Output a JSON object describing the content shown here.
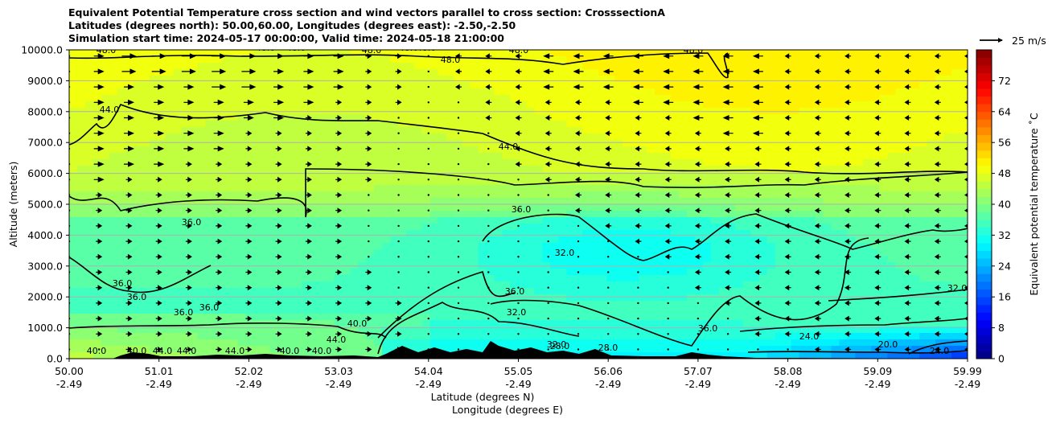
{
  "chart_data": {
    "type": "heatmap",
    "title_lines": [
      "Equivalent Potential Temperature cross section and wind vectors parallel to cross section: CrosssectionA",
      "Latitudes (degrees north): 50.00,60.00, Longitudes (degrees east): -2.50,-2.50",
      "Simulation start time: 2024-05-17 00:00:00, Valid time: 2024-05-18 21:00:00"
    ],
    "ylabel": "Altitude (meters)",
    "xlabel": "Latitude (degrees N)",
    "xlabel2": "Longitude (degrees E)",
    "ylim": [
      0,
      10000
    ],
    "y_ticks": [
      "0.0",
      "1000.0",
      "2000.0",
      "3000.0",
      "4000.0",
      "5000.0",
      "6000.0",
      "7000.0",
      "8000.0",
      "9000.0",
      "10000.0"
    ],
    "y_tick_values": [
      0,
      1000,
      2000,
      3000,
      4000,
      5000,
      6000,
      7000,
      8000,
      9000,
      10000
    ],
    "x_ticks": [
      {
        "lat": "50.00",
        "lon": "-2.49"
      },
      {
        "lat": "51.01",
        "lon": "-2.49"
      },
      {
        "lat": "52.02",
        "lon": "-2.49"
      },
      {
        "lat": "53.03",
        "lon": "-2.49"
      },
      {
        "lat": "54.04",
        "lon": "-2.49"
      },
      {
        "lat": "55.05",
        "lon": "-2.49"
      },
      {
        "lat": "56.06",
        "lon": "-2.49"
      },
      {
        "lat": "57.07",
        "lon": "-2.49"
      },
      {
        "lat": "58.08",
        "lon": "-2.49"
      },
      {
        "lat": "59.09",
        "lon": "-2.49"
      },
      {
        "lat": "59.99",
        "lon": "-2.49"
      }
    ],
    "grid": "horizontal",
    "colorbar": {
      "label": "Equivalent potential temperature $^\\circ$C",
      "label_display": "Equivalent potential temperature ˚C",
      "range": [
        0,
        80
      ],
      "ticks": [
        "0",
        "8",
        "16",
        "24",
        "32",
        "40",
        "48",
        "56",
        "64",
        "72"
      ],
      "tick_values": [
        0,
        8,
        16,
        24,
        32,
        40,
        48,
        56,
        64,
        72
      ],
      "colormap": "jet"
    },
    "quiver_key": {
      "label": "25 m/s",
      "value": 25
    },
    "contour_labels": [
      "48.0",
      "48.0",
      "48.0",
      "48.0",
      "48.0",
      "48.0",
      "48.0",
      "48.0",
      "48.0",
      "44.0",
      "44.0",
      "36.0",
      "36.0",
      "32.0",
      "36.0",
      "36.0",
      "36.0",
      "36.0",
      "32.0",
      "36.0",
      "32.0",
      "40.0",
      "44.0",
      "44.0",
      "44.0",
      "40.0",
      "40.0",
      "44.0",
      "40.0",
      "40.0",
      "28.0",
      "28.0",
      "24.0",
      "24.0",
      "20.0",
      "36.0",
      "32.0"
    ],
    "wind_rows": [
      {
        "alt": 9800,
        "u": [
          0,
          2,
          3,
          3,
          3,
          3,
          3,
          2,
          2,
          2,
          1,
          1,
          0,
          -1,
          -1,
          -1,
          -2,
          -2,
          -2,
          -2,
          -2,
          -2,
          -2,
          -2,
          -1,
          -1,
          -1,
          -1,
          -1,
          -1,
          -1
        ]
      },
      {
        "alt": 9300,
        "u": [
          0,
          2,
          3,
          3,
          3,
          3,
          3,
          2,
          2,
          2,
          1,
          1,
          0,
          -1,
          -1,
          -1,
          -2,
          -2,
          -2,
          -2,
          -2,
          -2,
          -2,
          -2,
          -1,
          -1,
          -1,
          -1,
          -1,
          -1,
          -1
        ]
      },
      {
        "alt": 8800,
        "u": [
          0,
          2,
          2,
          2,
          2,
          3,
          3,
          2,
          2,
          2,
          1,
          1,
          0,
          -1,
          -1,
          -1,
          -2,
          -2,
          -2,
          -2,
          -2,
          -2,
          -2,
          -2,
          -1,
          -1,
          -1,
          -1,
          -1,
          -1,
          -1
        ]
      },
      {
        "alt": 8300,
        "u": [
          0,
          2,
          2,
          2,
          2,
          2,
          2,
          2,
          2,
          1,
          1,
          1,
          0,
          0,
          -1,
          -1,
          -1,
          -1,
          -1,
          -2,
          -2,
          -2,
          -2,
          -2,
          -1,
          -1,
          -1,
          -1,
          -1,
          -1,
          -1
        ]
      },
      {
        "alt": 7800,
        "u": [
          0,
          2,
          2,
          2,
          2,
          2,
          2,
          2,
          1,
          1,
          1,
          0,
          0,
          0,
          -1,
          -1,
          -1,
          -1,
          -1,
          -1,
          -1,
          -2,
          -2,
          -2,
          -1,
          -1,
          -1,
          -1,
          -1,
          -1,
          -1
        ]
      },
      {
        "alt": 7300,
        "u": [
          0,
          2,
          2,
          2,
          2,
          2,
          1,
          1,
          1,
          1,
          1,
          0,
          0,
          0,
          0,
          -1,
          -1,
          -1,
          -1,
          -1,
          -1,
          -1,
          -2,
          -2,
          -1,
          -1,
          -1,
          -1,
          -1,
          -1,
          -1
        ]
      },
      {
        "alt": 6800,
        "u": [
          0,
          2,
          2,
          2,
          2,
          2,
          1,
          1,
          1,
          1,
          1,
          0,
          0,
          0,
          0,
          -1,
          -1,
          -1,
          -1,
          -1,
          -1,
          -1,
          -1,
          -1,
          -1,
          -1,
          -1,
          -1,
          -1,
          -1,
          -1
        ]
      },
      {
        "alt": 6300,
        "u": [
          0,
          2,
          2,
          2,
          1,
          1,
          1,
          1,
          1,
          1,
          1,
          0,
          0,
          0,
          0,
          -1,
          -1,
          -1,
          -1,
          -1,
          -1,
          -1,
          -1,
          -1,
          -1,
          -1,
          -1,
          -1,
          -1,
          -1,
          -1
        ]
      },
      {
        "alt": 5800,
        "u": [
          0,
          2,
          1,
          1,
          1,
          1,
          1,
          1,
          1,
          1,
          1,
          0,
          0,
          0,
          0,
          0,
          -1,
          -1,
          -1,
          -1,
          -1,
          -1,
          -1,
          -1,
          -1,
          -1,
          -1,
          -1,
          -1,
          -1,
          -1
        ]
      },
      {
        "alt": 5300,
        "u": [
          0,
          1,
          1,
          1,
          1,
          1,
          1,
          1,
          1,
          1,
          0,
          0,
          0,
          0,
          0,
          0,
          0,
          -1,
          -1,
          -1,
          -1,
          -1,
          -1,
          -1,
          -1,
          -1,
          -1,
          -1,
          -1,
          -1,
          -1
        ]
      },
      {
        "alt": 4800,
        "u": [
          0,
          1,
          1,
          1,
          1,
          1,
          1,
          1,
          1,
          1,
          0,
          0,
          0,
          0,
          0,
          0,
          0,
          -1,
          -1,
          -1,
          -1,
          -1,
          -1,
          -1,
          -1,
          -1,
          -1,
          -1,
          -1,
          -1,
          -1
        ]
      },
      {
        "alt": 4300,
        "u": [
          0,
          1,
          1,
          1,
          1,
          1,
          1,
          1,
          1,
          1,
          0,
          0,
          0,
          0,
          0,
          0,
          0,
          0,
          -1,
          -1,
          -1,
          -1,
          -1,
          -1,
          -1,
          -1,
          -1,
          -1,
          -1,
          -1,
          -1
        ]
      },
      {
        "alt": 3800,
        "u": [
          0,
          1,
          1,
          1,
          1,
          1,
          1,
          1,
          1,
          1,
          0,
          0,
          0,
          0,
          0,
          0,
          0,
          0,
          0,
          -1,
          -1,
          -1,
          -1,
          -1,
          -1,
          -1,
          -1,
          -1,
          -1,
          -1,
          -1
        ]
      },
      {
        "alt": 3300,
        "u": [
          0,
          1,
          1,
          1,
          1,
          1,
          1,
          1,
          1,
          1,
          0,
          0,
          0,
          0,
          0,
          0,
          0,
          0,
          0,
          0,
          -1,
          -1,
          -1,
          -1,
          -1,
          -1,
          -1,
          -1,
          -1,
          -1,
          -1
        ]
      },
      {
        "alt": 2800,
        "u": [
          0,
          1,
          1,
          1,
          1,
          1,
          1,
          1,
          1,
          1,
          1,
          0,
          0,
          0,
          0,
          0,
          0,
          0,
          0,
          0,
          0,
          -1,
          -1,
          -1,
          -1,
          -1,
          -1,
          -1,
          -1,
          -1,
          -1
        ]
      },
      {
        "alt": 2300,
        "u": [
          0,
          1,
          1,
          1,
          1,
          1,
          1,
          1,
          1,
          1,
          1,
          0,
          0,
          0,
          0,
          0,
          0,
          0,
          0,
          0,
          0,
          -1,
          -1,
          -1,
          -1,
          -1,
          -1,
          -1,
          -1,
          -1,
          -1
        ]
      },
      {
        "alt": 1800,
        "u": [
          0,
          1,
          1,
          1,
          1,
          1,
          1,
          1,
          1,
          1,
          1,
          1,
          0,
          0,
          0,
          0,
          0,
          0,
          0,
          0,
          0,
          0,
          -1,
          -1,
          -1,
          -1,
          -1,
          -1,
          -1,
          -1,
          -1
        ]
      },
      {
        "alt": 1300,
        "u": [
          0,
          1,
          1,
          1,
          1,
          1,
          1,
          1,
          1,
          1,
          1,
          1,
          0,
          0,
          0,
          0,
          0,
          0,
          0,
          0,
          0,
          0,
          0,
          -1,
          -1,
          -1,
          -1,
          -1,
          -1,
          -1,
          -1
        ]
      },
      {
        "alt": 800,
        "u": [
          0,
          1,
          1,
          1,
          1,
          1,
          1,
          1,
          1,
          1,
          1,
          1,
          0,
          0,
          0,
          0,
          0,
          0,
          0,
          0,
          0,
          0,
          0,
          -1,
          -1,
          -1,
          -1,
          -1,
          -1,
          -1,
          -1
        ]
      },
      {
        "alt": 300,
        "u": [
          0,
          0,
          1,
          1,
          1,
          1,
          1,
          1,
          1,
          1,
          1,
          1,
          0,
          0,
          0,
          0,
          0,
          0,
          0,
          0,
          0,
          0,
          0,
          0,
          0,
          -1,
          -1,
          -1,
          -1,
          -1,
          -1
        ]
      }
    ]
  },
  "colors": {
    "bg": "#ffffff",
    "terrain": "#000000",
    "contour": "#000000",
    "grid": "#b0b0b0"
  }
}
